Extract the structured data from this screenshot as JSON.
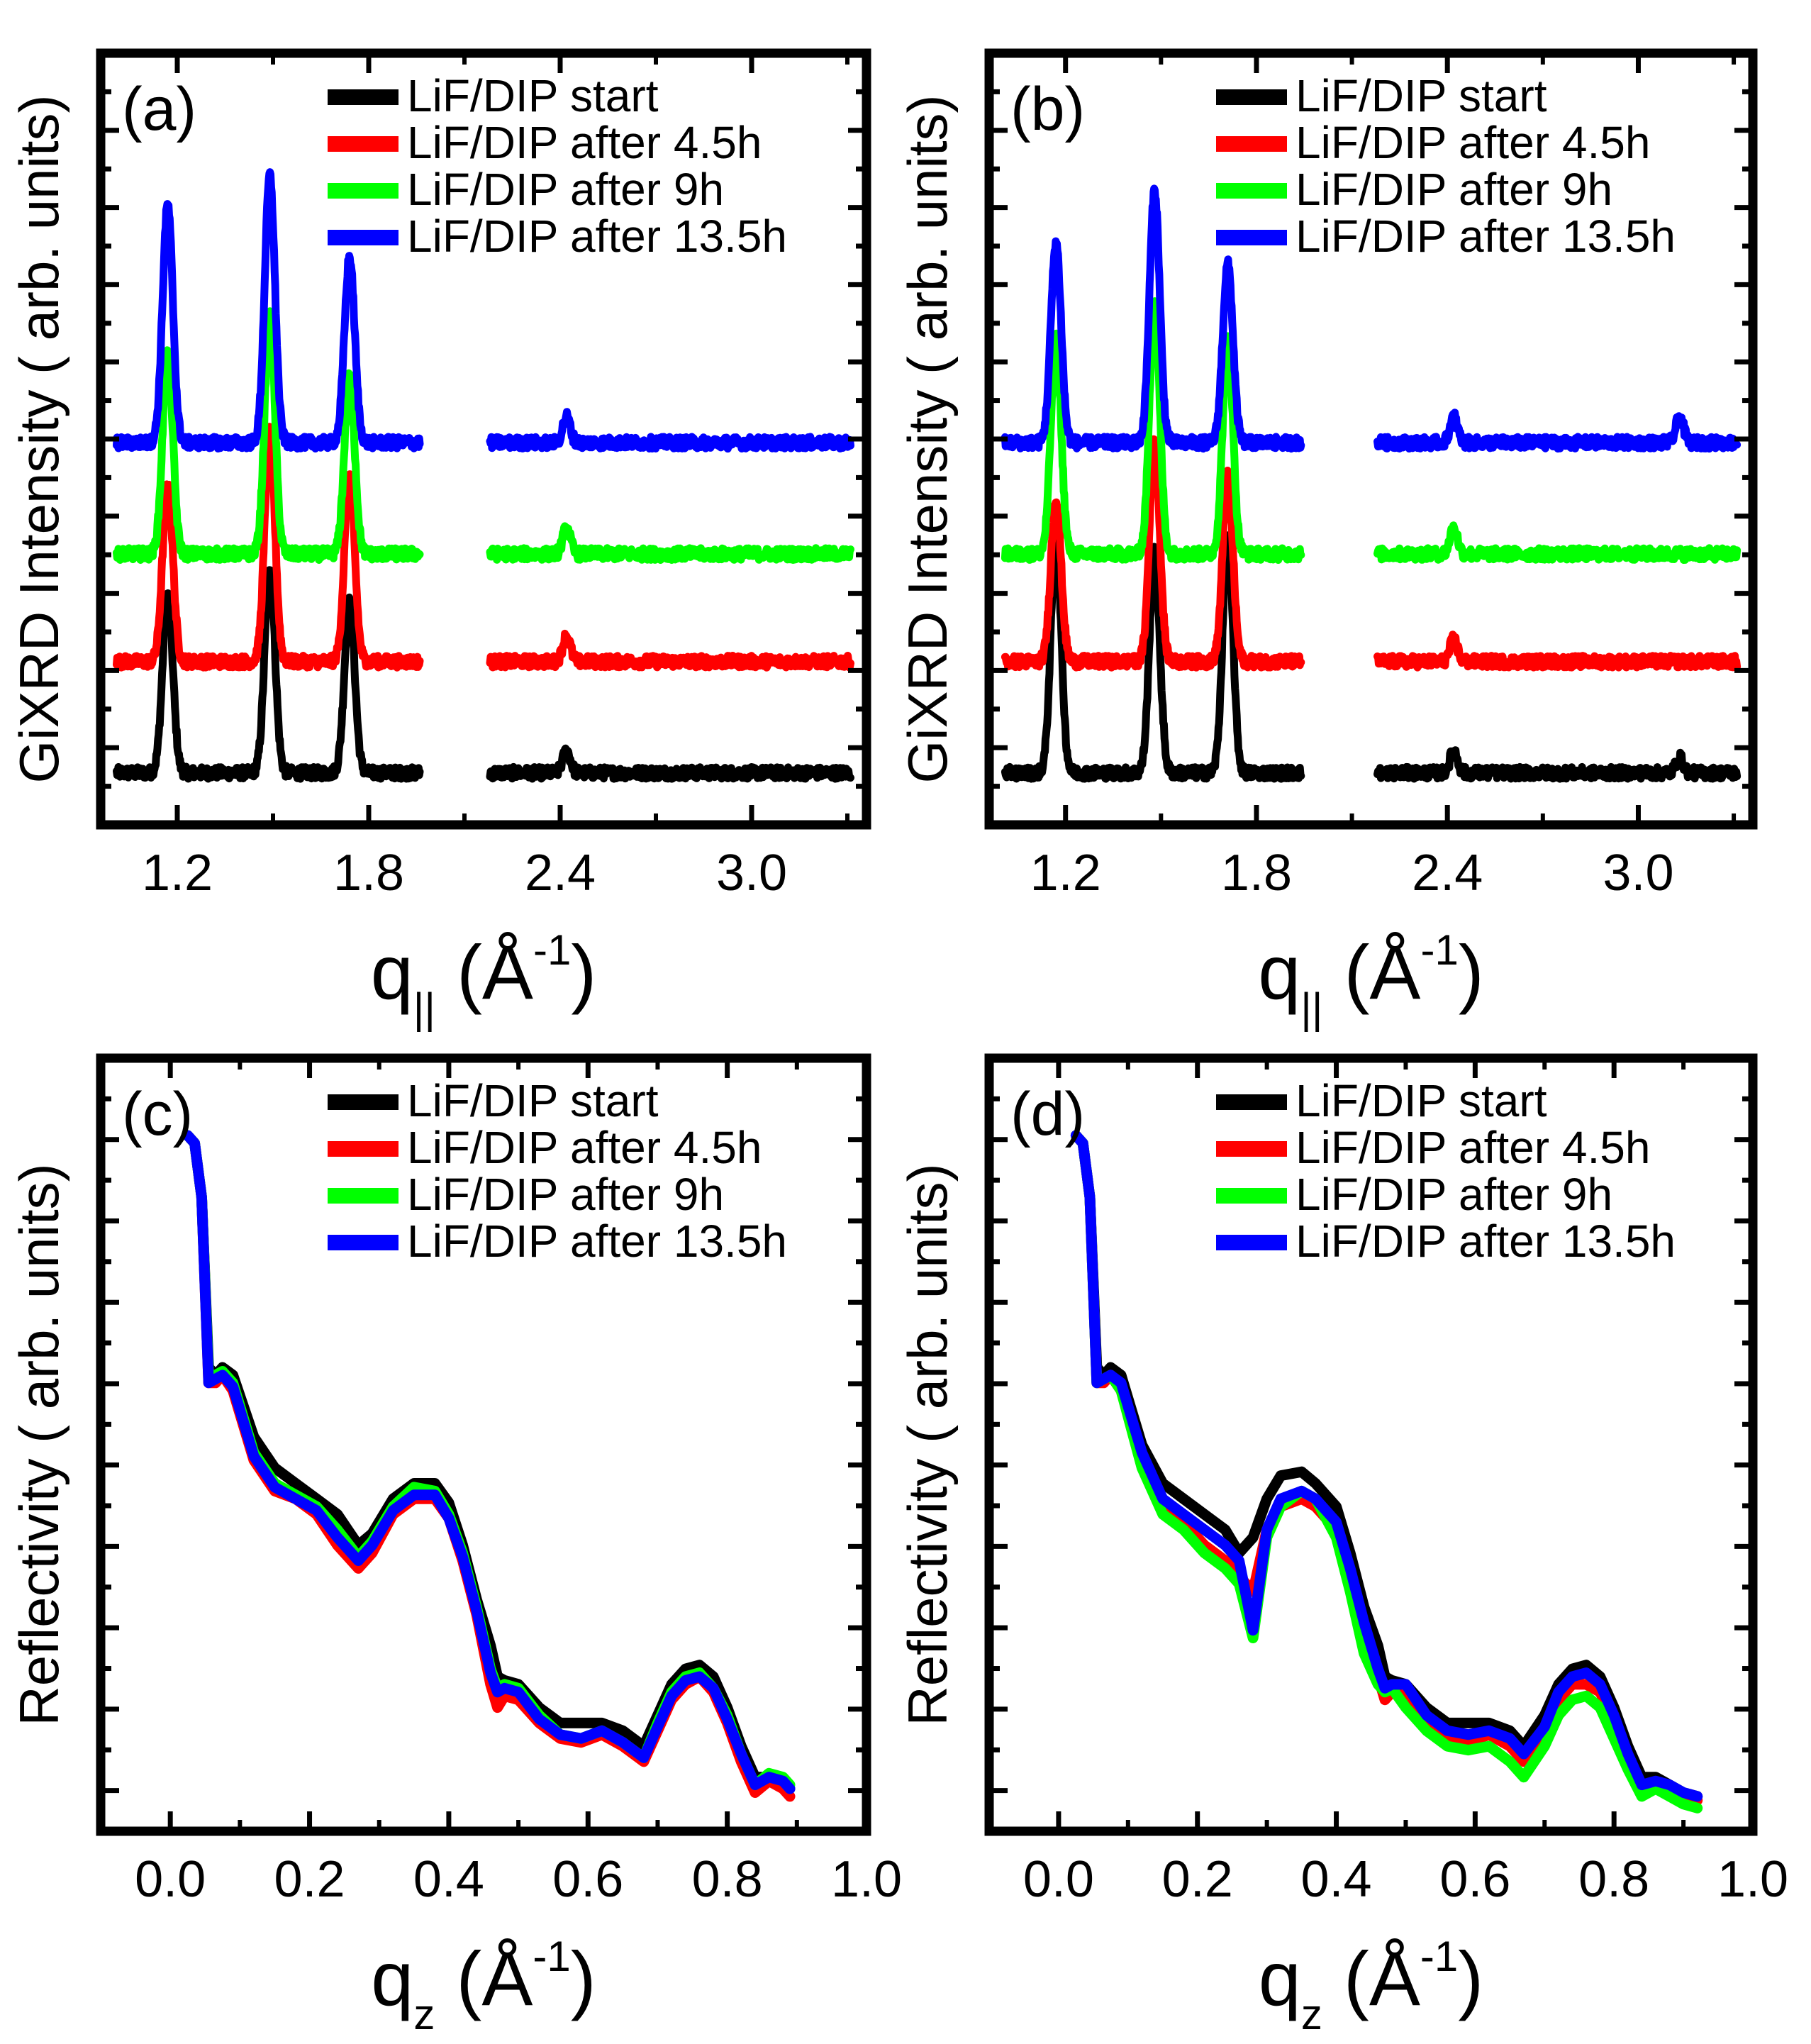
{
  "figure": {
    "legend_entries": [
      "LiF/DIP start",
      "LiF/DIP after 4.5h",
      "LiF/DIP after 9h",
      "LiF/DIP after 13.5h"
    ],
    "series_colors": [
      "#000000",
      "#ff0000",
      "#00ff00",
      "#0000ff"
    ]
  },
  "chart_data": [
    {
      "type": "line",
      "panel_label": "(a)",
      "title": "",
      "ylabel": "GiXRD Intensity ( arb. units)",
      "xlabel_main": "q",
      "xlabel_sub": "||",
      "xlabel_paren_open": "(",
      "xlabel_unit": "Å",
      "xlabel_sup": "-1",
      "xlabel_paren_close": ")",
      "xlim": [
        0.96,
        3.36
      ],
      "ylim": [
        -0.2,
        10.2
      ],
      "xticks": [
        1.2,
        1.8,
        2.4,
        3.0
      ],
      "xtick_labels": [
        "1.2",
        "1.8",
        "2.4",
        "3.0"
      ],
      "gap": [
        1.96,
        2.18
      ],
      "series": [
        {
          "name": "LiF/DIP start",
          "color": "#000000",
          "offset": 0.5,
          "peaks": [
            [
              1.17,
              2.4
            ],
            [
              1.49,
              2.8
            ],
            [
              1.74,
              2.3
            ],
            [
              2.42,
              0.3
            ]
          ]
        },
        {
          "name": "LiF/DIP after 4.5h",
          "color": "#ff0000",
          "offset": 2.0,
          "peaks": [
            [
              1.17,
              2.4
            ],
            [
              1.49,
              3.1
            ],
            [
              1.74,
              2.5
            ],
            [
              2.42,
              0.35
            ]
          ]
        },
        {
          "name": "LiF/DIP after 9h",
          "color": "#00ff00",
          "offset": 3.45,
          "peaks": [
            [
              1.17,
              2.7
            ],
            [
              1.49,
              3.2
            ],
            [
              1.74,
              2.4
            ],
            [
              2.42,
              0.35
            ]
          ]
        },
        {
          "name": "LiF/DIP after 13.5h",
          "color": "#0000ff",
          "offset": 4.95,
          "peaks": [
            [
              1.17,
              3.2
            ],
            [
              1.49,
              3.6
            ],
            [
              1.74,
              2.5
            ],
            [
              2.42,
              0.35
            ]
          ]
        }
      ]
    },
    {
      "type": "line",
      "panel_label": "(b)",
      "title": "",
      "ylabel": "GiXRD Intensity ( arb. units)",
      "xlabel_main": "q",
      "xlabel_sub": "||",
      "xlabel_paren_open": "(",
      "xlabel_unit": "Å",
      "xlabel_sup": "-1",
      "xlabel_paren_close": ")",
      "xlim": [
        0.96,
        3.36
      ],
      "ylim": [
        -0.2,
        10.2
      ],
      "xticks": [
        1.2,
        1.8,
        2.4,
        3.0
      ],
      "xtick_labels": [
        "1.2",
        "1.8",
        "2.4",
        "3.0"
      ],
      "gap": [
        1.94,
        2.18
      ],
      "series": [
        {
          "name": "LiF/DIP start",
          "color": "#000000",
          "offset": 0.5,
          "peaks": [
            [
              1.17,
              3.2
            ],
            [
              1.48,
              3.0
            ],
            [
              1.71,
              3.2
            ],
            [
              2.42,
              0.3
            ],
            [
              3.13,
              0.2
            ]
          ]
        },
        {
          "name": "LiF/DIP after 4.5h",
          "color": "#ff0000",
          "offset": 2.0,
          "peaks": [
            [
              1.17,
              2.2
            ],
            [
              1.48,
              3.0
            ],
            [
              1.71,
              2.5
            ],
            [
              2.42,
              0.3
            ]
          ]
        },
        {
          "name": "LiF/DIP after 9h",
          "color": "#00ff00",
          "offset": 3.45,
          "peaks": [
            [
              1.17,
              2.9
            ],
            [
              1.48,
              3.4
            ],
            [
              1.71,
              2.9
            ],
            [
              2.42,
              0.35
            ]
          ]
        },
        {
          "name": "LiF/DIP after 13.5h",
          "color": "#0000ff",
          "offset": 4.95,
          "peaks": [
            [
              1.17,
              2.7
            ],
            [
              1.48,
              3.4
            ],
            [
              1.71,
              2.4
            ],
            [
              2.42,
              0.35
            ],
            [
              3.13,
              0.35
            ]
          ]
        }
      ]
    },
    {
      "type": "line",
      "panel_label": "(c)",
      "title": "",
      "ylabel": "Reflectivity ( arb. units)",
      "xlabel_main": "q",
      "xlabel_sub": "z",
      "xlabel_paren_open": "(",
      "xlabel_unit": "Å",
      "xlabel_sup": "-1",
      "xlabel_paren_close": ")",
      "xlim": [
        -0.1,
        1.0
      ],
      "ylim": [
        0,
        10
      ],
      "xticks": [
        0.0,
        0.2,
        0.4,
        0.6,
        0.8,
        1.0
      ],
      "xtick_labels": [
        "0.0",
        "0.2",
        "0.4",
        "0.6",
        "0.8",
        "1.0"
      ],
      "series": [
        {
          "name": "LiF/DIP start",
          "color": "#000000",
          "x": [
            0.025,
            0.035,
            0.045,
            0.055,
            0.065,
            0.075,
            0.09,
            0.12,
            0.15,
            0.18,
            0.21,
            0.24,
            0.27,
            0.29,
            0.32,
            0.35,
            0.38,
            0.4,
            0.42,
            0.44,
            0.46,
            0.47,
            0.48,
            0.5,
            0.53,
            0.56,
            0.59,
            0.62,
            0.65,
            0.68,
            0.7,
            0.72,
            0.74,
            0.76,
            0.78,
            0.8,
            0.82,
            0.84,
            0.86,
            0.88,
            0.89
          ],
          "y": [
            9.0,
            8.9,
            8.2,
            6.0,
            5.9,
            6.0,
            5.9,
            5.1,
            4.7,
            4.5,
            4.3,
            4.1,
            3.7,
            3.85,
            4.3,
            4.5,
            4.5,
            4.25,
            3.7,
            3.0,
            2.4,
            2.0,
            1.95,
            1.9,
            1.6,
            1.4,
            1.4,
            1.4,
            1.3,
            1.1,
            1.5,
            1.9,
            2.1,
            2.15,
            2.0,
            1.6,
            1.1,
            0.7,
            0.7,
            0.6,
            0.55
          ]
        },
        {
          "name": "LiF/DIP after 4.5h",
          "color": "#ff0000",
          "x": [
            0.025,
            0.035,
            0.045,
            0.055,
            0.065,
            0.075,
            0.09,
            0.12,
            0.15,
            0.18,
            0.21,
            0.24,
            0.27,
            0.29,
            0.32,
            0.35,
            0.38,
            0.4,
            0.42,
            0.44,
            0.46,
            0.47,
            0.48,
            0.5,
            0.53,
            0.56,
            0.59,
            0.62,
            0.65,
            0.68,
            0.7,
            0.72,
            0.74,
            0.76,
            0.78,
            0.8,
            0.82,
            0.84,
            0.86,
            0.88,
            0.89
          ],
          "y": [
            9.0,
            8.9,
            8.2,
            5.8,
            5.8,
            5.9,
            5.7,
            4.8,
            4.4,
            4.3,
            4.1,
            3.7,
            3.4,
            3.6,
            4.1,
            4.3,
            4.3,
            4.05,
            3.5,
            2.8,
            1.9,
            1.6,
            1.75,
            1.7,
            1.4,
            1.2,
            1.15,
            1.25,
            1.1,
            0.9,
            1.3,
            1.7,
            1.9,
            2.0,
            1.8,
            1.4,
            0.9,
            0.5,
            0.65,
            0.55,
            0.45
          ]
        },
        {
          "name": "LiF/DIP after 9h",
          "color": "#00ff00",
          "x": [
            0.025,
            0.035,
            0.045,
            0.055,
            0.065,
            0.075,
            0.09,
            0.12,
            0.15,
            0.18,
            0.21,
            0.24,
            0.27,
            0.29,
            0.32,
            0.35,
            0.38,
            0.4,
            0.42,
            0.44,
            0.46,
            0.47,
            0.48,
            0.5,
            0.53,
            0.56,
            0.59,
            0.62,
            0.65,
            0.68,
            0.7,
            0.72,
            0.74,
            0.76,
            0.78,
            0.8,
            0.82,
            0.84,
            0.86,
            0.88,
            0.89
          ],
          "y": [
            9.0,
            8.9,
            8.2,
            5.9,
            5.9,
            5.95,
            5.8,
            4.9,
            4.5,
            4.35,
            4.2,
            3.9,
            3.55,
            3.75,
            4.2,
            4.45,
            4.4,
            4.1,
            3.6,
            2.9,
            2.1,
            1.85,
            1.9,
            1.85,
            1.5,
            1.25,
            1.2,
            1.3,
            1.15,
            0.95,
            1.4,
            1.8,
            2.0,
            2.05,
            1.85,
            1.5,
            1.0,
            0.6,
            0.75,
            0.7,
            0.6
          ]
        },
        {
          "name": "LiF/DIP after 13.5h",
          "color": "#0000ff",
          "x": [
            0.025,
            0.035,
            0.045,
            0.055,
            0.065,
            0.075,
            0.09,
            0.12,
            0.15,
            0.18,
            0.21,
            0.24,
            0.27,
            0.29,
            0.32,
            0.35,
            0.38,
            0.4,
            0.42,
            0.44,
            0.46,
            0.47,
            0.48,
            0.5,
            0.53,
            0.56,
            0.59,
            0.62,
            0.65,
            0.68,
            0.7,
            0.72,
            0.74,
            0.76,
            0.78,
            0.8,
            0.82,
            0.84,
            0.86,
            0.88,
            0.89
          ],
          "y": [
            9.0,
            8.9,
            8.2,
            5.8,
            5.85,
            5.9,
            5.75,
            4.85,
            4.45,
            4.3,
            4.15,
            3.8,
            3.5,
            3.7,
            4.15,
            4.35,
            4.35,
            4.05,
            3.55,
            2.85,
            2.05,
            1.8,
            1.85,
            1.8,
            1.45,
            1.25,
            1.2,
            1.3,
            1.15,
            0.95,
            1.35,
            1.75,
            1.95,
            2.0,
            1.85,
            1.45,
            1.0,
            0.6,
            0.7,
            0.65,
            0.55
          ]
        }
      ]
    },
    {
      "type": "line",
      "panel_label": "(d)",
      "title": "",
      "ylabel": "Reflectivity ( arb. units)",
      "xlabel_main": "q",
      "xlabel_sub": "z",
      "xlabel_paren_open": "(",
      "xlabel_unit": "Å",
      "xlabel_sup": "-1",
      "xlabel_paren_close": ")",
      "xlim": [
        -0.1,
        1.0
      ],
      "ylim": [
        0,
        10
      ],
      "xticks": [
        0.0,
        0.2,
        0.4,
        0.6,
        0.8,
        1.0
      ],
      "xtick_labels": [
        "0.0",
        "0.2",
        "0.4",
        "0.6",
        "0.8",
        "1.0"
      ],
      "series": [
        {
          "name": "LiF/DIP start",
          "color": "#000000",
          "x": [
            0.025,
            0.035,
            0.045,
            0.055,
            0.065,
            0.075,
            0.09,
            0.12,
            0.15,
            0.18,
            0.21,
            0.24,
            0.26,
            0.28,
            0.3,
            0.32,
            0.35,
            0.37,
            0.4,
            0.42,
            0.44,
            0.46,
            0.47,
            0.48,
            0.5,
            0.53,
            0.56,
            0.59,
            0.62,
            0.65,
            0.67,
            0.7,
            0.72,
            0.74,
            0.76,
            0.78,
            0.8,
            0.82,
            0.84,
            0.86,
            0.88,
            0.9,
            0.92
          ],
          "y": [
            9.0,
            8.9,
            8.2,
            6.0,
            5.9,
            6.0,
            5.9,
            5.0,
            4.5,
            4.3,
            4.1,
            3.9,
            3.6,
            3.8,
            4.3,
            4.6,
            4.65,
            4.5,
            4.2,
            3.6,
            2.9,
            2.4,
            2.0,
            1.95,
            1.9,
            1.6,
            1.4,
            1.4,
            1.4,
            1.3,
            1.1,
            1.5,
            1.9,
            2.1,
            2.15,
            2.0,
            1.6,
            1.1,
            0.7,
            0.7,
            0.6,
            0.5,
            0.45
          ]
        },
        {
          "name": "LiF/DIP after 4.5h",
          "color": "#ff0000",
          "x": [
            0.025,
            0.035,
            0.045,
            0.055,
            0.065,
            0.075,
            0.09,
            0.12,
            0.15,
            0.18,
            0.21,
            0.24,
            0.26,
            0.28,
            0.3,
            0.32,
            0.35,
            0.37,
            0.4,
            0.42,
            0.44,
            0.46,
            0.47,
            0.48,
            0.5,
            0.53,
            0.56,
            0.59,
            0.62,
            0.65,
            0.67,
            0.7,
            0.72,
            0.74,
            0.76,
            0.78,
            0.8,
            0.82,
            0.84,
            0.86,
            0.88,
            0.9,
            0.92
          ],
          "y": [
            9.0,
            8.9,
            8.2,
            5.8,
            5.8,
            5.9,
            5.7,
            4.8,
            4.3,
            4.0,
            3.7,
            3.5,
            3.3,
            3.1,
            3.9,
            4.2,
            4.3,
            4.2,
            3.9,
            3.3,
            2.6,
            2.0,
            1.7,
            1.8,
            1.75,
            1.4,
            1.2,
            1.15,
            1.25,
            1.1,
            0.9,
            1.3,
            1.7,
            1.9,
            1.9,
            1.8,
            1.4,
            0.9,
            0.55,
            0.6,
            0.55,
            0.45,
            0.4
          ]
        },
        {
          "name": "LiF/DIP after 9h",
          "color": "#00ff00",
          "x": [
            0.025,
            0.035,
            0.045,
            0.055,
            0.065,
            0.075,
            0.09,
            0.12,
            0.15,
            0.18,
            0.21,
            0.24,
            0.26,
            0.28,
            0.3,
            0.32,
            0.35,
            0.37,
            0.4,
            0.42,
            0.44,
            0.46,
            0.47,
            0.48,
            0.5,
            0.53,
            0.56,
            0.59,
            0.62,
            0.65,
            0.67,
            0.7,
            0.72,
            0.74,
            0.76,
            0.78,
            0.8,
            0.82,
            0.84,
            0.86,
            0.88,
            0.9,
            0.92
          ],
          "y": [
            9.0,
            8.9,
            8.2,
            5.8,
            5.85,
            5.9,
            5.7,
            4.7,
            4.1,
            3.9,
            3.6,
            3.4,
            3.2,
            2.5,
            3.8,
            4.2,
            4.4,
            4.3,
            3.8,
            3.1,
            2.3,
            1.9,
            1.8,
            1.85,
            1.6,
            1.3,
            1.1,
            1.05,
            1.1,
            0.9,
            0.7,
            1.1,
            1.5,
            1.7,
            1.75,
            1.6,
            1.2,
            0.8,
            0.45,
            0.55,
            0.45,
            0.35,
            0.3
          ]
        },
        {
          "name": "LiF/DIP after 13.5h",
          "color": "#0000ff",
          "x": [
            0.025,
            0.035,
            0.045,
            0.055,
            0.065,
            0.075,
            0.09,
            0.12,
            0.15,
            0.18,
            0.21,
            0.24,
            0.26,
            0.28,
            0.3,
            0.32,
            0.35,
            0.37,
            0.4,
            0.42,
            0.44,
            0.46,
            0.47,
            0.48,
            0.5,
            0.53,
            0.56,
            0.59,
            0.62,
            0.65,
            0.67,
            0.7,
            0.72,
            0.74,
            0.76,
            0.78,
            0.8,
            0.82,
            0.84,
            0.86,
            0.88,
            0.9,
            0.92
          ],
          "y": [
            9.0,
            8.9,
            8.2,
            5.8,
            5.85,
            5.9,
            5.8,
            4.9,
            4.3,
            4.1,
            3.9,
            3.7,
            3.5,
            2.6,
            3.9,
            4.3,
            4.4,
            4.3,
            4.0,
            3.4,
            2.7,
            2.1,
            1.85,
            1.9,
            1.9,
            1.5,
            1.3,
            1.25,
            1.3,
            1.2,
            1.0,
            1.35,
            1.8,
            2.0,
            2.05,
            1.9,
            1.5,
            1.0,
            0.6,
            0.65,
            0.6,
            0.5,
            0.45
          ]
        }
      ]
    }
  ]
}
